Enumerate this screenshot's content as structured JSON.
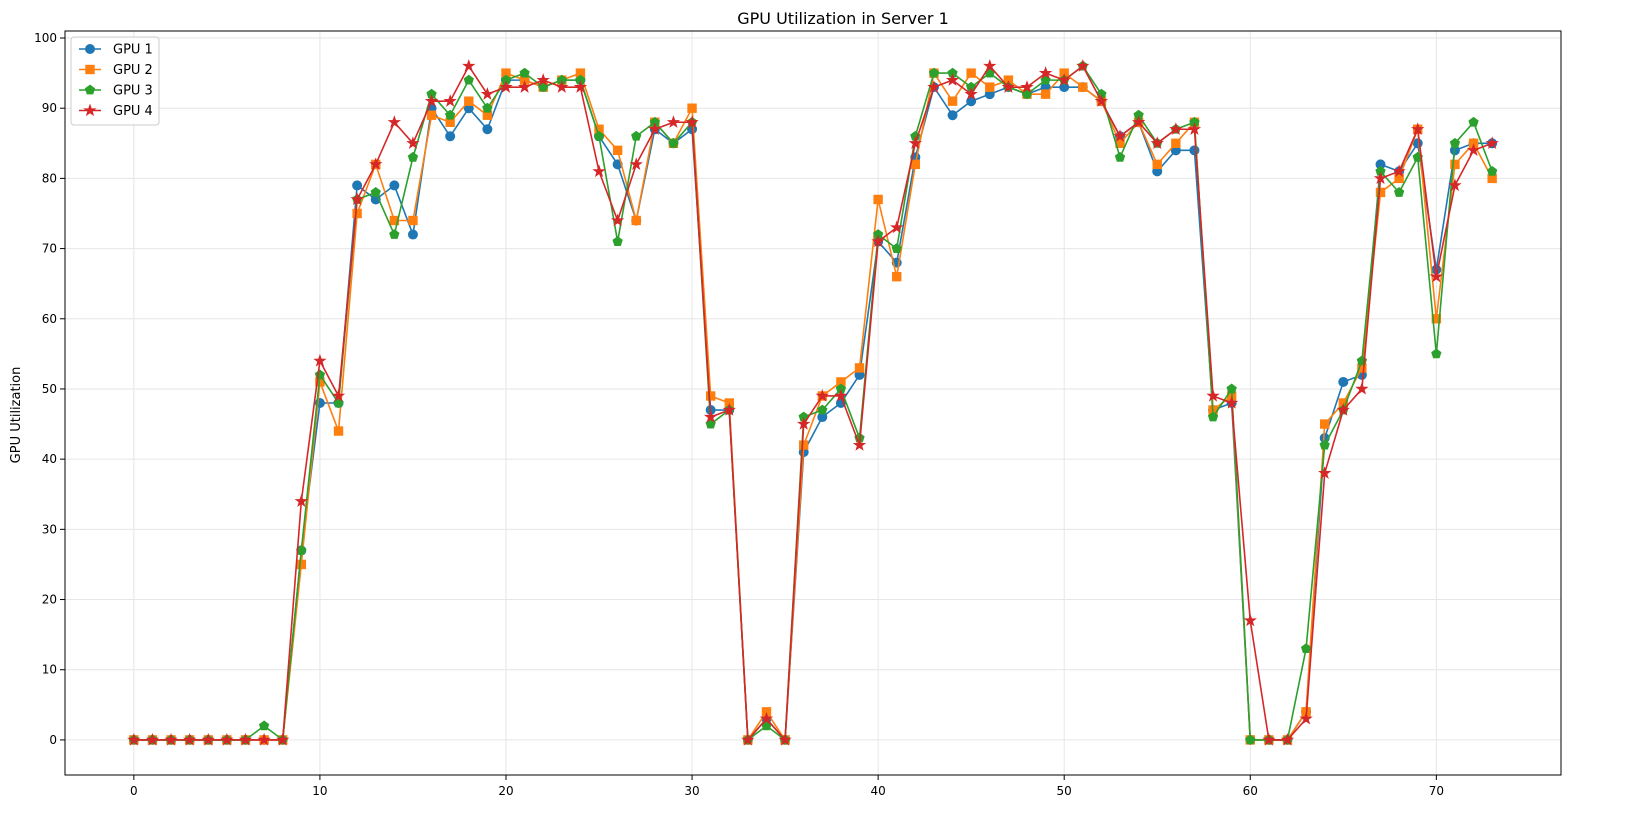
{
  "chart_data": {
    "type": "line",
    "title": "GPU Utilization in Server 1",
    "xlabel": "",
    "ylabel": "GPU Utilization",
    "xlim": [
      -3.7,
      76.7
    ],
    "ylim": [
      -5,
      101
    ],
    "xticks": [
      0,
      10,
      20,
      30,
      40,
      50,
      60,
      70
    ],
    "yticks": [
      0,
      10,
      20,
      30,
      40,
      50,
      60,
      70,
      80,
      90,
      100
    ],
    "grid": true,
    "legend_position": "top-left",
    "series": [
      {
        "name": "GPU 1",
        "color": "#1f77b4",
        "marker": "circle",
        "values": [
          0,
          0,
          0,
          0,
          0,
          0,
          0,
          0,
          0,
          27,
          48,
          48,
          79,
          77,
          79,
          72,
          90,
          86,
          90,
          87,
          94,
          94,
          93,
          94,
          94,
          86,
          82,
          74,
          87,
          85,
          87,
          47,
          47,
          0,
          3,
          0,
          41,
          46,
          48,
          52,
          71,
          68,
          83,
          93,
          89,
          91,
          92,
          93,
          92,
          93,
          93,
          93,
          91,
          86,
          88,
          81,
          84,
          84,
          47,
          48,
          0,
          0,
          0,
          4,
          43,
          51,
          52,
          82,
          81,
          85,
          67,
          84,
          85,
          85
        ]
      },
      {
        "name": "GPU 2",
        "color": "#ff7f0e",
        "marker": "square",
        "values": [
          0,
          0,
          0,
          0,
          0,
          0,
          0,
          0,
          0,
          25,
          51,
          44,
          75,
          82,
          74,
          74,
          89,
          88,
          91,
          89,
          95,
          94,
          93,
          94,
          95,
          87,
          84,
          74,
          88,
          85,
          90,
          49,
          48,
          0,
          4,
          0,
          42,
          49,
          51,
          53,
          77,
          66,
          82,
          95,
          91,
          95,
          93,
          94,
          92,
          92,
          95,
          93,
          91,
          85,
          88,
          82,
          85,
          88,
          47,
          49,
          0,
          0,
          0,
          4,
          45,
          48,
          53,
          78,
          80,
          87,
          60,
          82,
          85,
          80
        ]
      },
      {
        "name": "GPU 3",
        "color": "#2ca02c",
        "marker": "pentagon",
        "values": [
          0,
          0,
          0,
          0,
          0,
          0,
          0,
          2,
          0,
          27,
          52,
          48,
          77,
          78,
          72,
          83,
          92,
          89,
          94,
          90,
          94,
          95,
          93,
          94,
          94,
          86,
          71,
          86,
          88,
          85,
          88,
          45,
          47,
          0,
          2,
          0,
          46,
          47,
          50,
          43,
          72,
          70,
          86,
          95,
          95,
          93,
          95,
          93,
          92,
          94,
          94,
          96,
          92,
          83,
          89,
          85,
          87,
          88,
          46,
          50,
          0,
          0,
          0,
          13,
          42,
          47,
          54,
          81,
          78,
          83,
          55,
          85,
          88,
          81
        ]
      },
      {
        "name": "GPU 4",
        "color": "#d62728",
        "marker": "star",
        "values": [
          0,
          0,
          0,
          0,
          0,
          0,
          0,
          0,
          0,
          34,
          54,
          49,
          77,
          82,
          88,
          85,
          91,
          91,
          96,
          92,
          93,
          93,
          94,
          93,
          93,
          81,
          74,
          82,
          87,
          88,
          88,
          46,
          47,
          0,
          3,
          0,
          45,
          49,
          49,
          42,
          71,
          73,
          85,
          93,
          94,
          92,
          96,
          93,
          93,
          95,
          94,
          96,
          91,
          86,
          88,
          85,
          87,
          87,
          49,
          48,
          17,
          0,
          0,
          3,
          38,
          47,
          50,
          80,
          81,
          87,
          66,
          79,
          84,
          85
        ]
      }
    ]
  }
}
